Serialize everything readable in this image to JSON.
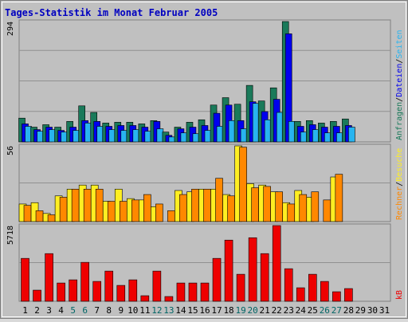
{
  "title": "Tages-Statistik im Monat Februar 2005",
  "days": [
    "1",
    "2",
    "3",
    "4",
    "5",
    "6",
    "7",
    "8",
    "9",
    "10",
    "11",
    "12",
    "13",
    "14",
    "15",
    "16",
    "17",
    "18",
    "19",
    "20",
    "21",
    "22",
    "23",
    "24",
    "25",
    "26",
    "27",
    "28",
    "29",
    "30",
    "31"
  ],
  "weekend_days": [
    "5",
    "6",
    "12",
    "13",
    "19",
    "20",
    "26",
    "27"
  ],
  "colors": {
    "background": "#c0c0c0",
    "frame": "#e0e0e0",
    "title": "#0000c0",
    "weekend_tick": "#006666",
    "normal_tick": "#000000",
    "anfragen": "#1a7a5a",
    "dateien": "#0000ee",
    "seiten": "#28b4f0",
    "besuche": "#ffee22",
    "rechner": "#ff8800",
    "kb": "#ee0000"
  },
  "chart_data": [
    {
      "type": "bar",
      "categories": [
        "1",
        "2",
        "3",
        "4",
        "5",
        "6",
        "7",
        "8",
        "9",
        "10",
        "11",
        "12",
        "13",
        "14",
        "15",
        "16",
        "17",
        "18",
        "19",
        "20",
        "21",
        "22",
        "23",
        "24",
        "25",
        "26",
        "27",
        "28"
      ],
      "max_label": "294",
      "ylim": [
        0,
        294
      ],
      "legend": [
        "Anfragen",
        "/",
        "Dateien",
        "/",
        "Seiten"
      ],
      "series": [
        {
          "name": "Anfragen",
          "color": "#1a7a5a",
          "values": [
            58,
            36,
            42,
            36,
            50,
            88,
            72,
            46,
            48,
            48,
            44,
            52,
            24,
            36,
            48,
            54,
            90,
            108,
            92,
            138,
            100,
            132,
            294,
            50,
            52,
            46,
            50,
            56
          ]
        },
        {
          "name": "Dateien",
          "color": "#0000ee",
          "values": [
            44,
            30,
            36,
            28,
            36,
            52,
            50,
            38,
            40,
            40,
            36,
            50,
            16,
            32,
            36,
            40,
            70,
            90,
            52,
            98,
            74,
            104,
            264,
            38,
            42,
            36,
            38,
            40
          ]
        },
        {
          "name": "Seiten",
          "color": "#28b4f0",
          "values": [
            38,
            26,
            30,
            24,
            28,
            46,
            38,
            30,
            28,
            30,
            26,
            32,
            12,
            22,
            20,
            28,
            38,
            52,
            32,
            94,
            54,
            72,
            50,
            24,
            30,
            22,
            22,
            36
          ]
        }
      ]
    },
    {
      "type": "bar",
      "categories": [
        "1",
        "2",
        "3",
        "4",
        "5",
        "6",
        "7",
        "8",
        "9",
        "10",
        "11",
        "12",
        "13",
        "14",
        "15",
        "16",
        "17",
        "18",
        "19",
        "20",
        "21",
        "22",
        "23",
        "24",
        "25",
        "26",
        "27",
        "28"
      ],
      "max_label": "56",
      "ylim": [
        0,
        56
      ],
      "legend": [
        "Rechner",
        "/",
        "Besuche"
      ],
      "series": [
        {
          "name": "Besuche",
          "color": "#ffee22",
          "values": [
            13,
            14,
            6,
            19,
            24,
            27,
            27,
            15,
            24,
            17,
            16,
            11,
            0,
            23,
            22,
            24,
            24,
            20,
            56,
            28,
            27,
            22,
            14,
            23,
            18,
            0,
            33,
            0
          ]
        },
        {
          "name": "Rechner",
          "color": "#ff8800",
          "values": [
            12,
            8,
            5,
            18,
            24,
            24,
            24,
            15,
            15,
            16,
            20,
            13,
            8,
            20,
            24,
            24,
            32,
            19,
            55,
            25,
            26,
            22,
            13,
            20,
            22,
            16,
            35,
            0
          ]
        }
      ]
    },
    {
      "type": "bar",
      "categories": [
        "1",
        "2",
        "3",
        "4",
        "5",
        "6",
        "7",
        "8",
        "9",
        "10",
        "11",
        "12",
        "13",
        "14",
        "15",
        "16",
        "17",
        "18",
        "19",
        "20",
        "21",
        "22",
        "23",
        "24",
        "25",
        "26",
        "27",
        "28"
      ],
      "max_label": "5718",
      "ylim": [
        0,
        5718
      ],
      "legend": [
        "kB"
      ],
      "series": [
        {
          "name": "kB",
          "color": "#ee0000",
          "values": [
            3240,
            840,
            3600,
            1380,
            1620,
            2940,
            1500,
            2280,
            1200,
            1620,
            420,
            2280,
            360,
            1380,
            1380,
            1380,
            3240,
            4620,
            2040,
            4800,
            3600,
            5718,
            2460,
            1020,
            2040,
            1500,
            720,
            960
          ]
        }
      ]
    }
  ]
}
